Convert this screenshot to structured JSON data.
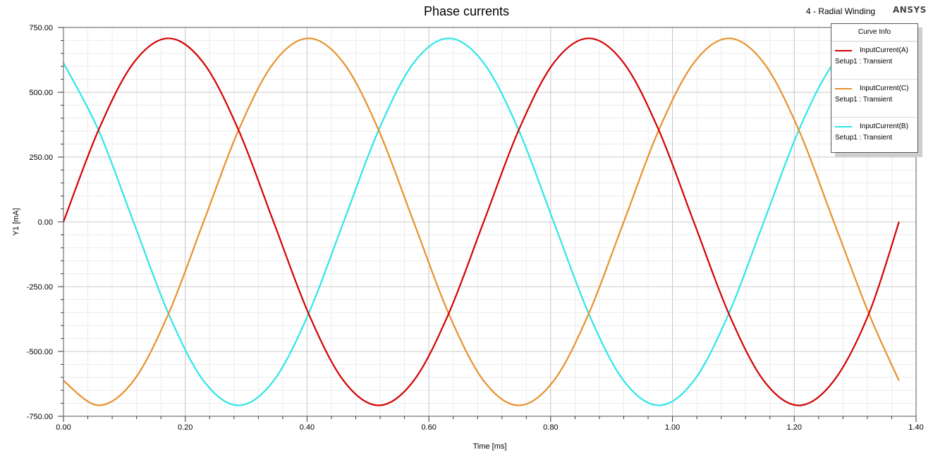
{
  "chart_data": {
    "type": "line",
    "title": "Phase currents",
    "design_name": "4 - Radial Winding",
    "brand": "ANSYS",
    "xlabel": "Time [ms]",
    "ylabel": "Y1 [mA]",
    "xlim": [
      0,
      1.4
    ],
    "ylim": [
      -750,
      750
    ],
    "x_ticks": [
      "0.00",
      "0.20",
      "0.40",
      "0.60",
      "0.80",
      "1.00",
      "1.20",
      "1.40"
    ],
    "y_ticks": [
      "750.00",
      "500.00",
      "250.00",
      "0.00",
      "-250.00",
      "-500.00",
      "-750.00"
    ],
    "grid": true,
    "legend_title": "Curve Info",
    "legend_position": "top-right",
    "series": [
      {
        "name": "InputCurrent(A)",
        "setup": "Setup1 : Transient",
        "color": "#d40000",
        "x": [
          0,
          0.0575,
          0.115,
          0.1725,
          0.23,
          0.2875,
          0.345,
          0.4025,
          0.46,
          0.5175,
          0.575,
          0.6325,
          0.69,
          0.7475,
          0.805,
          0.8625,
          0.92,
          0.9775,
          1.035,
          1.0925,
          1.15,
          1.2075,
          1.265,
          1.3225,
          1.372
        ],
        "y": [
          0,
          354,
          613,
          708,
          613,
          354,
          0,
          -354,
          -613,
          -708,
          -613,
          -354,
          0,
          354,
          613,
          708,
          613,
          354,
          0,
          -354,
          -613,
          -708,
          -613,
          -354,
          0
        ]
      },
      {
        "name": "InputCurrent(C)",
        "setup": "Setup1 : Transient",
        "color": "#e8912a",
        "x": [
          0,
          0.0575,
          0.115,
          0.1725,
          0.23,
          0.2875,
          0.345,
          0.4025,
          0.46,
          0.5175,
          0.575,
          0.6325,
          0.69,
          0.7475,
          0.805,
          0.8625,
          0.92,
          0.9775,
          1.035,
          1.0925,
          1.15,
          1.2075,
          1.265,
          1.3225,
          1.372
        ],
        "y": [
          -613,
          -708,
          -613,
          -354,
          0,
          354,
          613,
          708,
          613,
          354,
          0,
          -354,
          -613,
          -708,
          -613,
          -354,
          0,
          354,
          613,
          708,
          613,
          354,
          0,
          -354,
          -613
        ]
      },
      {
        "name": "InputCurrent(B)",
        "setup": "Setup1 : Transient",
        "color": "#2ee6e6",
        "x": [
          0,
          0.0575,
          0.115,
          0.1725,
          0.23,
          0.2875,
          0.345,
          0.4025,
          0.46,
          0.5175,
          0.575,
          0.6325,
          0.69,
          0.7475,
          0.805,
          0.8625,
          0.92,
          0.9775,
          1.035,
          1.0925,
          1.15,
          1.2075,
          1.265,
          1.3225,
          1.372
        ],
        "y": [
          613,
          354,
          0,
          -354,
          -613,
          -708,
          -613,
          -354,
          0,
          354,
          613,
          708,
          613,
          354,
          0,
          -354,
          -613,
          -708,
          -613,
          -354,
          0,
          354,
          613,
          708,
          613
        ]
      }
    ]
  }
}
